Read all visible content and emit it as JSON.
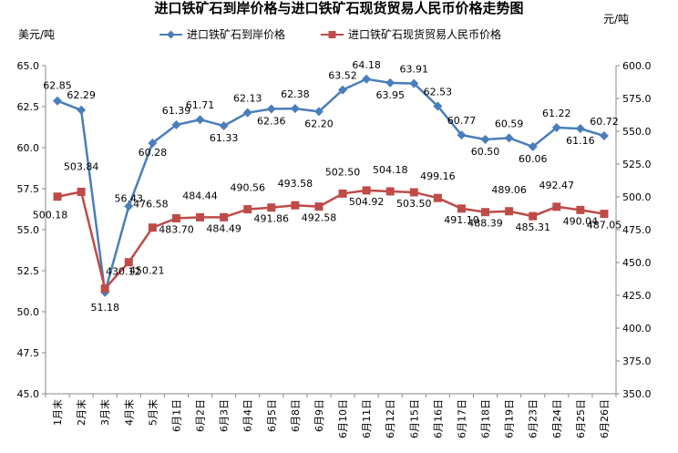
{
  "chart_data": {
    "type": "line",
    "title": "进口铁矿石到岸价格与进口铁矿石现货贸易人民币价格走势图",
    "ylabel": "美元/吨",
    "y2label": "元/吨",
    "categories": [
      "1月末",
      "2月末",
      "3月末",
      "4月末",
      "5月末",
      "6月1日",
      "6月2日",
      "6月3日",
      "6月4日",
      "6月5日",
      "6月8日",
      "6月9日",
      "6月10日",
      "6月11日",
      "6月12日",
      "6月15日",
      "6月16日",
      "6月17日",
      "6月18日",
      "6月19日",
      "6月23日",
      "6月24日",
      "6月25日",
      "6月26日"
    ],
    "ylim": [
      45.0,
      65.0
    ],
    "yticks": [
      "45.0",
      "47.5",
      "50.0",
      "52.5",
      "55.0",
      "57.5",
      "60.0",
      "62.5",
      "65.0"
    ],
    "y2lim": [
      350.0,
      600.0
    ],
    "y2ticks": [
      "350.0",
      "375.0",
      "400.0",
      "425.0",
      "450.0",
      "475.0",
      "500.0",
      "525.0",
      "550.0",
      "575.0",
      "600.0"
    ],
    "legend_position": "top",
    "grid": false,
    "series": [
      {
        "name": "进口铁矿石到岸价格",
        "axis": "left",
        "color": "#4a7ebb",
        "marker": "diamond",
        "values": [
          62.85,
          62.29,
          51.18,
          56.43,
          60.28,
          61.39,
          61.71,
          61.33,
          62.13,
          62.36,
          62.38,
          62.2,
          63.52,
          64.18,
          63.95,
          63.91,
          62.53,
          60.77,
          60.5,
          60.59,
          60.06,
          61.22,
          61.16,
          60.72
        ],
        "labels": [
          "62.85",
          "62.29",
          "51.18",
          "56.43",
          "60.28",
          "61.39",
          "61.71",
          "61.33",
          "62.13",
          "62.36",
          "62.38",
          "62.20",
          "63.52",
          "64.18",
          "63.95",
          "63.91",
          "62.53",
          "60.77",
          "60.50",
          "60.59",
          "60.06",
          "61.22",
          "61.16",
          "60.72"
        ]
      },
      {
        "name": "进口铁矿石现货贸易人民币价格",
        "axis": "right",
        "color": "#be4b48",
        "marker": "square",
        "values": [
          500.18,
          503.84,
          430.12,
          450.21,
          476.58,
          483.7,
          484.44,
          484.49,
          490.56,
          491.86,
          493.58,
          492.58,
          502.5,
          504.92,
          504.18,
          503.5,
          499.16,
          491.1,
          488.39,
          489.06,
          485.31,
          492.47,
          490.04,
          487.05
        ],
        "labels": [
          "500.18",
          "503.84",
          "430.12",
          "450.21",
          "476.58",
          "483.70",
          "484.44",
          "484.49",
          "490.56",
          "491.86",
          "493.58",
          "492.58",
          "502.50",
          "504.92",
          "504.18",
          "503.50",
          "499.16",
          "491.10",
          "488.39",
          "489.06",
          "485.31",
          "492.47",
          "490.04",
          "487.05"
        ]
      }
    ]
  }
}
